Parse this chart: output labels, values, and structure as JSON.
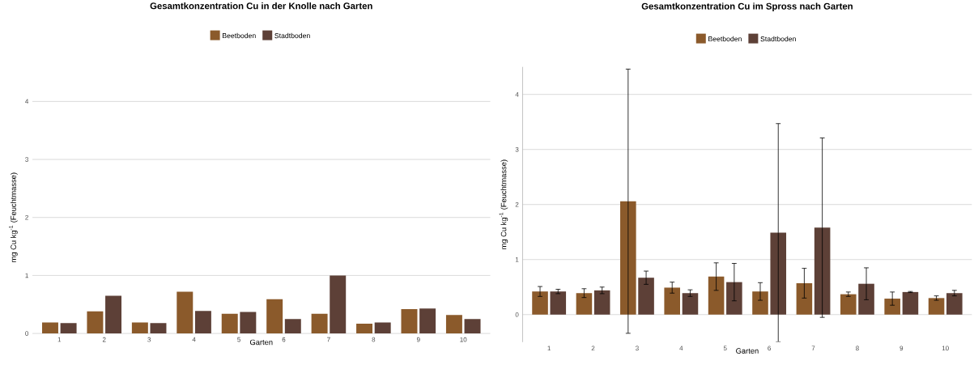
{
  "chart_data": [
    {
      "type": "bar",
      "title": "Gesamtkonzentration Cu in der Knolle nach Garten",
      "xlabel": "Garten",
      "ylabel": "mg Cu kg$^{-1}$ (Feuchtmasse)",
      "categories": [
        "1",
        "2",
        "3",
        "4",
        "5",
        "6",
        "7",
        "8",
        "9",
        "10"
      ],
      "series": [
        {
          "name": "Beetboden",
          "color": "#8b5a2b",
          "values": [
            0.19,
            0.38,
            0.19,
            0.72,
            0.34,
            0.59,
            0.34,
            0.17,
            0.42,
            0.32
          ]
        },
        {
          "name": "Stadtboden",
          "color": "#5d4037",
          "values": [
            0.18,
            0.65,
            0.18,
            0.39,
            0.37,
            0.25,
            1.0,
            0.19,
            0.43,
            0.25
          ]
        }
      ],
      "ylim": [
        0,
        4
      ],
      "yticks": [
        0,
        1,
        2,
        3,
        4
      ],
      "grid": "y",
      "legend": "top"
    },
    {
      "type": "bar",
      "title": "Gesamtkonzentration Cu im Spross nach Garten",
      "xlabel": "Garten",
      "ylabel": "mg Cu kg$^{-1}$ (Feuchtmasse)",
      "categories": [
        "1",
        "2",
        "3",
        "4",
        "5",
        "6",
        "7",
        "8",
        "9",
        "10"
      ],
      "series": [
        {
          "name": "Beetboden",
          "color": "#8b5a2b",
          "values": [
            0.42,
            0.39,
            2.06,
            0.49,
            0.69,
            0.42,
            0.57,
            0.37,
            0.29,
            0.3
          ],
          "errors": [
            0.09,
            0.08,
            2.4,
            0.1,
            0.25,
            0.16,
            0.27,
            0.04,
            0.12,
            0.04
          ]
        },
        {
          "name": "Stadtboden",
          "color": "#5d4037",
          "values": [
            0.42,
            0.44,
            0.67,
            0.39,
            0.59,
            1.49,
            1.58,
            0.56,
            0.41,
            0.39
          ],
          "errors": [
            0.04,
            0.06,
            0.12,
            0.06,
            0.34,
            1.98,
            1.63,
            0.29,
            0.01,
            0.05
          ]
        }
      ],
      "ylim": [
        -0.5,
        4.5
      ],
      "yticks": [
        0,
        1,
        2,
        3,
        4
      ],
      "grid": "y",
      "legend": "top"
    }
  ]
}
